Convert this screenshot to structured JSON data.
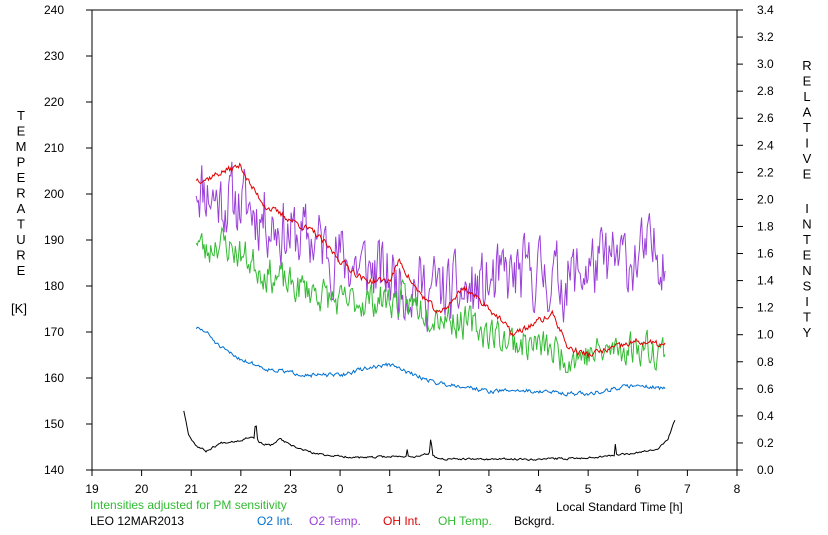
{
  "chart_data": {
    "type": "line",
    "left_axis_letters": [
      "T",
      "E",
      "M",
      "P",
      "E",
      "R",
      "A",
      "T",
      "U",
      "R",
      "E"
    ],
    "left_axis_unit": "[K]",
    "right_axis_letters": [
      "R",
      "E",
      "L",
      "A",
      "T",
      "I",
      "V",
      "E",
      "I",
      "N",
      "T",
      "E",
      "N",
      "S",
      "I",
      "T",
      "Y"
    ],
    "xlabel": "Local Standard Time [h]",
    "note": "Intensities adjusted for PM sensitivity",
    "station": "LEO 12MAR2013",
    "x_range": [
      19,
      32
    ],
    "x_ticks": [
      {
        "value": 19,
        "label": "19"
      },
      {
        "value": 20,
        "label": "20"
      },
      {
        "value": 21,
        "label": "21"
      },
      {
        "value": 22,
        "label": "22"
      },
      {
        "value": 23,
        "label": "23"
      },
      {
        "value": 24,
        "label": "0"
      },
      {
        "value": 25,
        "label": "1"
      },
      {
        "value": 26,
        "label": "2"
      },
      {
        "value": 27,
        "label": "3"
      },
      {
        "value": 28,
        "label": "4"
      },
      {
        "value": 29,
        "label": "5"
      },
      {
        "value": 30,
        "label": "6"
      },
      {
        "value": 31,
        "label": "7"
      },
      {
        "value": 32,
        "label": "8"
      }
    ],
    "ylim_left": [
      140,
      240
    ],
    "y_ticks_left": [
      "140",
      "150",
      "160",
      "170",
      "180",
      "190",
      "200",
      "210",
      "220",
      "230",
      "240"
    ],
    "ylim_right": [
      0.0,
      3.4
    ],
    "y_ticks_right": [
      "0.0",
      "0.2",
      "0.4",
      "0.6",
      "0.8",
      "1.0",
      "1.2",
      "1.4",
      "1.6",
      "1.8",
      "2.0",
      "2.2",
      "2.4",
      "2.6",
      "2.8",
      "3.0",
      "3.2",
      "3.4"
    ],
    "legend": [
      {
        "name": "O2 Int.",
        "color": "#0070d0"
      },
      {
        "name": "O2 Temp.",
        "color": "#9a40d8"
      },
      {
        "name": "OH Int.",
        "color": "#e00000"
      },
      {
        "name": "OH Temp.",
        "color": "#33bb33"
      },
      {
        "name": "Bckgrd.",
        "color": "#000000"
      }
    ],
    "series": [
      {
        "name": "O2 Temp.",
        "axis": "left",
        "color": "#9a40d8",
        "noise": 12,
        "seed": 11,
        "x_start": 21.1,
        "x_end": 30.55,
        "x": [
          21.1,
          21.5,
          22.0,
          22.5,
          23.0,
          23.5,
          24.0,
          24.5,
          25.0,
          25.5,
          26.0,
          26.5,
          27.0,
          27.5,
          28.0,
          28.5,
          29.0,
          29.5,
          30.0,
          30.55
        ],
        "y": [
          203,
          199,
          198,
          195,
          191,
          190,
          186,
          184,
          182,
          180,
          179,
          178,
          180,
          182,
          183,
          181,
          184,
          185,
          186,
          188
        ]
      },
      {
        "name": "OH Temp.",
        "axis": "left",
        "color": "#33bb33",
        "noise": 6,
        "seed": 23,
        "x_start": 21.1,
        "x_end": 30.55,
        "x": [
          21.1,
          21.3,
          21.5,
          22.0,
          22.5,
          23.0,
          23.5,
          24.0,
          24.5,
          25.0,
          25.5,
          26.0,
          26.5,
          27.0,
          27.5,
          28.0,
          28.5,
          29.0,
          29.5,
          30.0,
          30.55
        ],
        "y": [
          191,
          187,
          190,
          187,
          183,
          180,
          179,
          176,
          177,
          177,
          176,
          174,
          172,
          170,
          168,
          167,
          165,
          165,
          166,
          167,
          166
        ]
      },
      {
        "name": "OH Int.",
        "axis": "right",
        "color": "#e00000",
        "noise": 0.04,
        "seed": 37,
        "x_start": 21.1,
        "x_end": 30.55,
        "x": [
          21.1,
          21.3,
          21.6,
          22.0,
          22.2,
          22.5,
          23.0,
          23.5,
          24.0,
          24.5,
          25.0,
          25.2,
          25.5,
          26.0,
          26.5,
          27.0,
          27.5,
          28.0,
          28.3,
          28.6,
          29.0,
          29.5,
          30.0,
          30.55
        ],
        "y": [
          2.15,
          2.15,
          2.2,
          2.25,
          2.1,
          1.95,
          1.85,
          1.75,
          1.55,
          1.4,
          1.4,
          1.55,
          1.35,
          1.15,
          1.35,
          1.2,
          1.0,
          1.1,
          1.15,
          0.9,
          0.85,
          0.9,
          0.95,
          0.92
        ]
      },
      {
        "name": "O2 Int.",
        "axis": "right",
        "color": "#0070d0",
        "noise": 0.025,
        "seed": 51,
        "x_start": 21.1,
        "x_end": 30.55,
        "x": [
          21.1,
          21.3,
          21.6,
          22.0,
          22.5,
          23.0,
          23.5,
          24.0,
          24.5,
          25.0,
          25.5,
          26.0,
          26.5,
          27.0,
          27.5,
          28.0,
          28.5,
          29.0,
          29.5,
          30.0,
          30.55
        ],
        "y": [
          1.05,
          1.02,
          0.9,
          0.82,
          0.75,
          0.72,
          0.7,
          0.7,
          0.75,
          0.78,
          0.7,
          0.64,
          0.62,
          0.58,
          0.59,
          0.58,
          0.57,
          0.56,
          0.6,
          0.63,
          0.6
        ]
      },
      {
        "name": "Bckgrd.",
        "axis": "right",
        "color": "#000000",
        "noise": 0.012,
        "seed": 67,
        "x_start": 20.85,
        "x_end": 30.75,
        "x": [
          20.85,
          20.95,
          21.1,
          21.3,
          21.6,
          22.0,
          22.2,
          22.4,
          22.6,
          22.8,
          23.0,
          23.5,
          24.0,
          24.5,
          25.0,
          25.5,
          25.8,
          26.0,
          26.5,
          27.0,
          28.0,
          29.0,
          29.5,
          30.0,
          30.4,
          30.6,
          30.75
        ],
        "y": [
          0.44,
          0.26,
          0.18,
          0.14,
          0.2,
          0.22,
          0.25,
          0.2,
          0.18,
          0.23,
          0.18,
          0.12,
          0.1,
          0.09,
          0.1,
          0.1,
          0.12,
          0.08,
          0.08,
          0.08,
          0.08,
          0.09,
          0.11,
          0.13,
          0.16,
          0.22,
          0.37
        ]
      }
    ],
    "spikes": [
      {
        "series": "Bckgrd.",
        "x": 22.3,
        "y": 0.37
      },
      {
        "series": "Bckgrd.",
        "x": 25.83,
        "y": 0.25
      },
      {
        "series": "Bckgrd.",
        "x": 25.35,
        "y": 0.16
      },
      {
        "series": "Bckgrd.",
        "x": 29.55,
        "y": 0.2
      }
    ]
  }
}
